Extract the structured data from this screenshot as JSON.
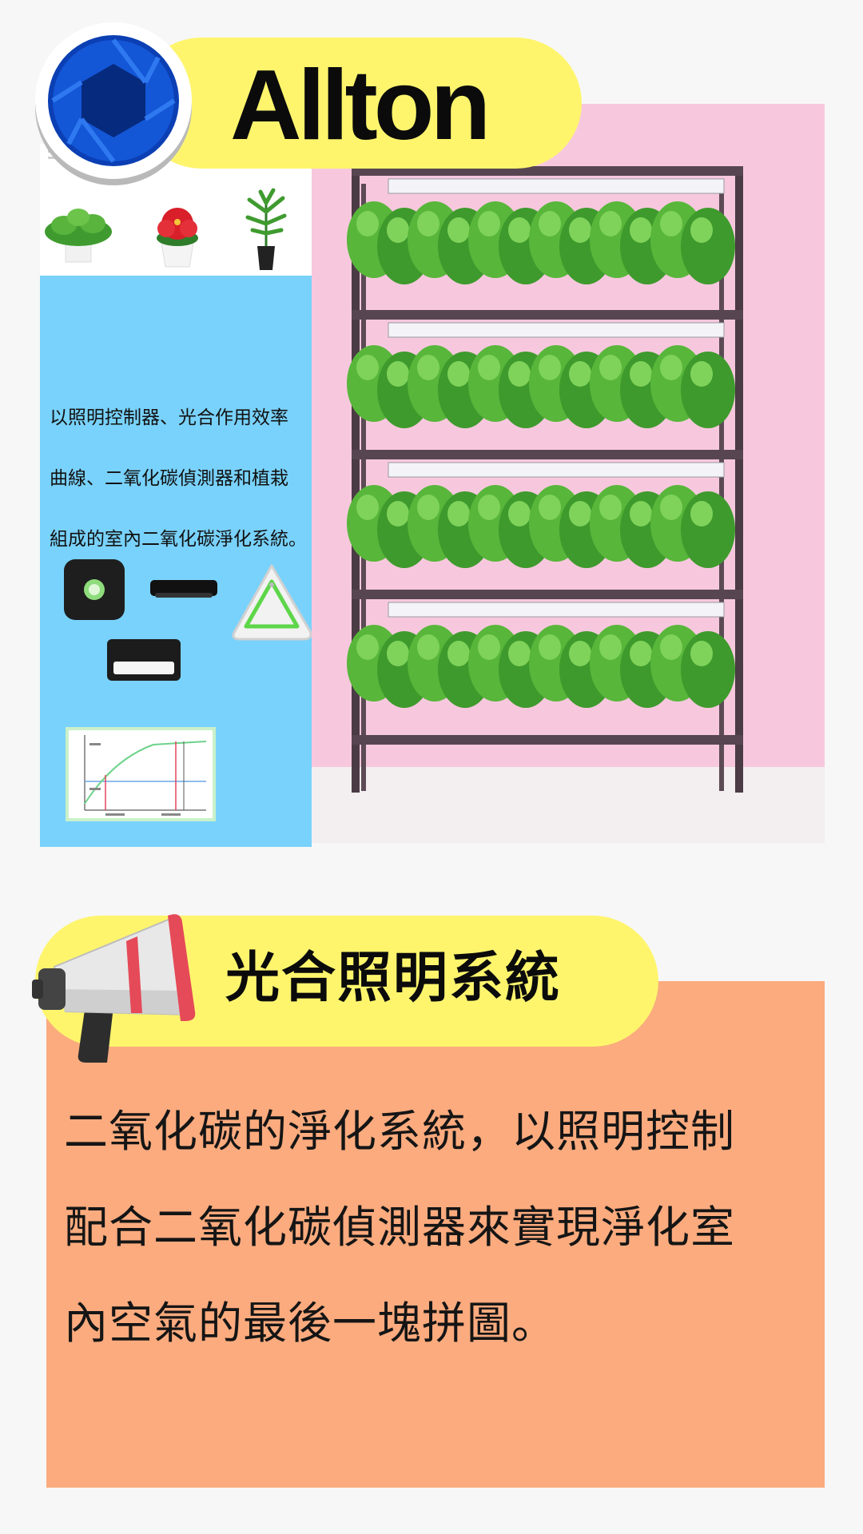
{
  "brand": {
    "name": "Allton",
    "logo_color": "#0b3fb3",
    "pill_color": "#fef56d"
  },
  "hero": {
    "description_lines": [
      "以照明控制器、光合作用效率",
      "曲線、二氧化碳偵測器和植栽",
      "組成的室內二氧化碳淨化系統。"
    ],
    "devices_icon": "iot-devices-icon",
    "chart_icon": "photosynthesis-curve-icon",
    "rack_image": "plant-shelf-image",
    "background_blue": "#79d2fb",
    "background_pink": "#f7c8dd"
  },
  "section": {
    "title": "光合照明系統",
    "icon": "megaphone-icon",
    "body_lines": [
      "二氧化碳的淨化系統，以照明控制",
      "配合二氧化碳偵測器來實現淨化室",
      "內空氣的最後一塊拼圖。"
    ],
    "panel_color": "#fbab7e"
  }
}
